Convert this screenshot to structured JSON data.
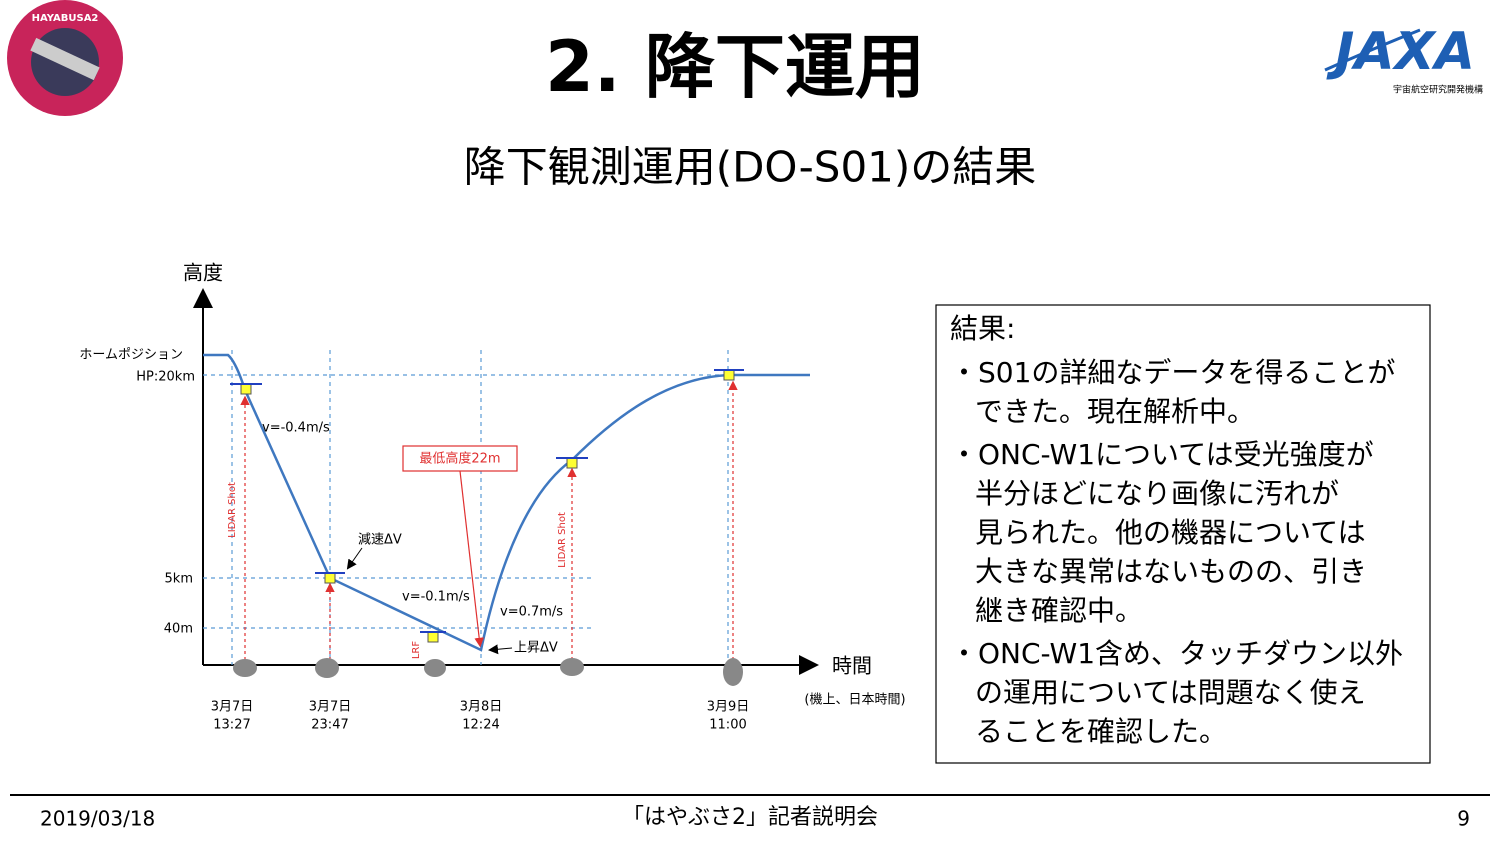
{
  "header": {
    "title": "2. 降下運用",
    "subtitle": "降下観測運用(DO-S01)の結果",
    "logo_left": "HAYABUSA2",
    "logo_right": "JAXA",
    "logo_right_sub": "宇宙航空研究開発機構"
  },
  "diagram": {
    "y_axis": "高度",
    "x_axis": "時間",
    "x_note": "(機上、日本時間)",
    "altitude_labels": [
      "ホームポジション",
      "HP:20km",
      "5km",
      "40m"
    ],
    "time_labels": [
      [
        "3月7日",
        "13:27"
      ],
      [
        "3月7日",
        "23:47"
      ],
      [
        "3月8日",
        "12:24"
      ],
      [
        "3月9日",
        "11:00"
      ]
    ],
    "annotations": [
      "v=-0.4m/s",
      "減速ΔV",
      "v=-0.1m/s",
      "v=0.7m/s",
      "上昇ΔV",
      "最低高度22m",
      "LIDAR Shot",
      "LIDAR Shot",
      "LRF"
    ]
  },
  "results": {
    "title": "結果:",
    "items": [
      [
        "・S01の詳細なデータを得ることが",
        "できた。現在解析中。"
      ],
      [
        "・ONC-W1については受光強度が",
        "半分ほどになり画像に汚れが",
        "見られた。他の機器については",
        "大きな異常はないものの、引き",
        "継き確認中。"
      ],
      [
        "・ONC-W1含め、タッチダウン以外",
        "の運用については問題なく使え",
        "ることを確認した。"
      ]
    ]
  },
  "footer": {
    "date": "2019/03/18",
    "event": "「はやぶさ2」記者説明会",
    "page": "9"
  }
}
